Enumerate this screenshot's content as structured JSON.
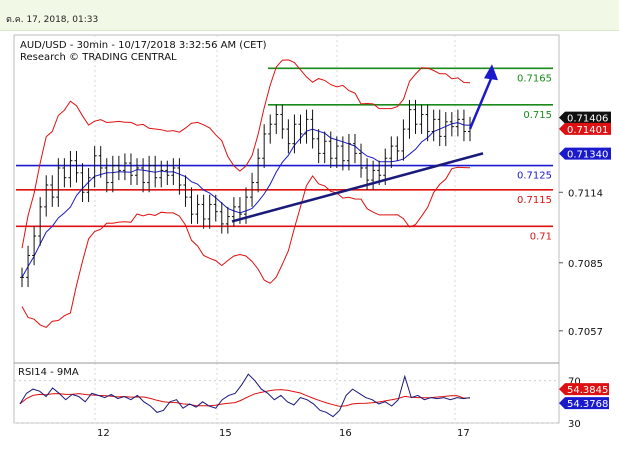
{
  "header": {
    "datetime": "ต.ค. 17, 2018, 01:33"
  },
  "chart_data": {
    "type": "candlestick",
    "title": "AUD/USD - 30min - 10/17/2018 3:32:56 AM (CET)",
    "subtitle": "Research © TRADING CENTRAL",
    "ylim": [
      0.7045,
      0.7175
    ],
    "y_ticks": [
      "0.7114",
      "0.7085",
      "0.7057"
    ],
    "x_ticks": [
      "12",
      "15",
      "16",
      "17"
    ],
    "levels": [
      {
        "label": "0.7165",
        "value": 0.7165,
        "color": "#1a8a1a"
      },
      {
        "label": "0.715",
        "value": 0.715,
        "color": "#1a8a1a"
      },
      {
        "label": "0.7125",
        "value": 0.7125,
        "color": "#1a1acc"
      },
      {
        "label": "0.7115",
        "value": 0.7115,
        "color": "#dd1111"
      },
      {
        "label": "0.71",
        "value": 0.71,
        "color": "#dd1111"
      }
    ],
    "price_tags": [
      {
        "label": "0.71406",
        "value": 0.71406,
        "color": "#111111"
      },
      {
        "label": "0.71401",
        "value": 0.71401,
        "color": "#dd1111"
      },
      {
        "label": "0.71340",
        "value": 0.7134,
        "color": "#1a1acc"
      }
    ],
    "close_path": [
      0.7079,
      0.7088,
      0.7096,
      0.7108,
      0.7117,
      0.7112,
      0.7124,
      0.712,
      0.7127,
      0.7122,
      0.7114,
      0.712,
      0.7129,
      0.7124,
      0.7118,
      0.7125,
      0.7123,
      0.7126,
      0.7121,
      0.7124,
      0.7118,
      0.7125,
      0.712,
      0.7123,
      0.7121,
      0.7124,
      0.7117,
      0.7112,
      0.7105,
      0.7109,
      0.7103,
      0.7109,
      0.7106,
      0.7101,
      0.7104,
      0.7108,
      0.7105,
      0.7112,
      0.7118,
      0.7128,
      0.7138,
      0.7142,
      0.7146,
      0.714,
      0.7134,
      0.7142,
      0.7138,
      0.7144,
      0.7136,
      0.713,
      0.7135,
      0.7128,
      0.7133,
      0.7127,
      0.7134,
      0.713,
      0.7124,
      0.7119,
      0.7123,
      0.7121,
      0.7128,
      0.7133,
      0.7131,
      0.714,
      0.7148,
      0.7142,
      0.7146,
      0.7139,
      0.7144,
      0.7137,
      0.7143,
      0.7141,
      0.7144,
      0.7139,
      0.7141
    ],
    "trendline": {
      "from": [
        0.0,
        0.7102
      ],
      "to": [
        1.0,
        0.713
      ]
    },
    "projection": {
      "from": 0.71401,
      "to": 0.7165
    },
    "indicator": {
      "name": "RSI14 - 9MA",
      "ylim": [
        30,
        80
      ],
      "y_ticks": [
        "70",
        "30"
      ],
      "tags": [
        {
          "label": "54.3845",
          "value": 54.3845,
          "color": "#dd1111"
        },
        {
          "label": "54.3768",
          "value": 54.3768,
          "color": "#1a1acc"
        }
      ],
      "rsi": [
        48,
        58,
        62,
        60,
        55,
        63,
        58,
        52,
        57,
        55,
        50,
        58,
        56,
        54,
        57,
        53,
        55,
        52,
        56,
        50,
        46,
        40,
        42,
        50,
        52,
        44,
        48,
        45,
        50,
        46,
        44,
        52,
        56,
        58,
        66,
        76,
        70,
        62,
        58,
        52,
        56,
        50,
        47,
        54,
        52,
        48,
        42,
        40,
        36,
        42,
        56,
        62,
        58,
        54,
        52,
        48,
        50,
        46,
        52,
        74,
        54,
        56,
        52,
        54,
        53,
        54,
        52,
        54,
        53,
        54
      ]
    }
  }
}
